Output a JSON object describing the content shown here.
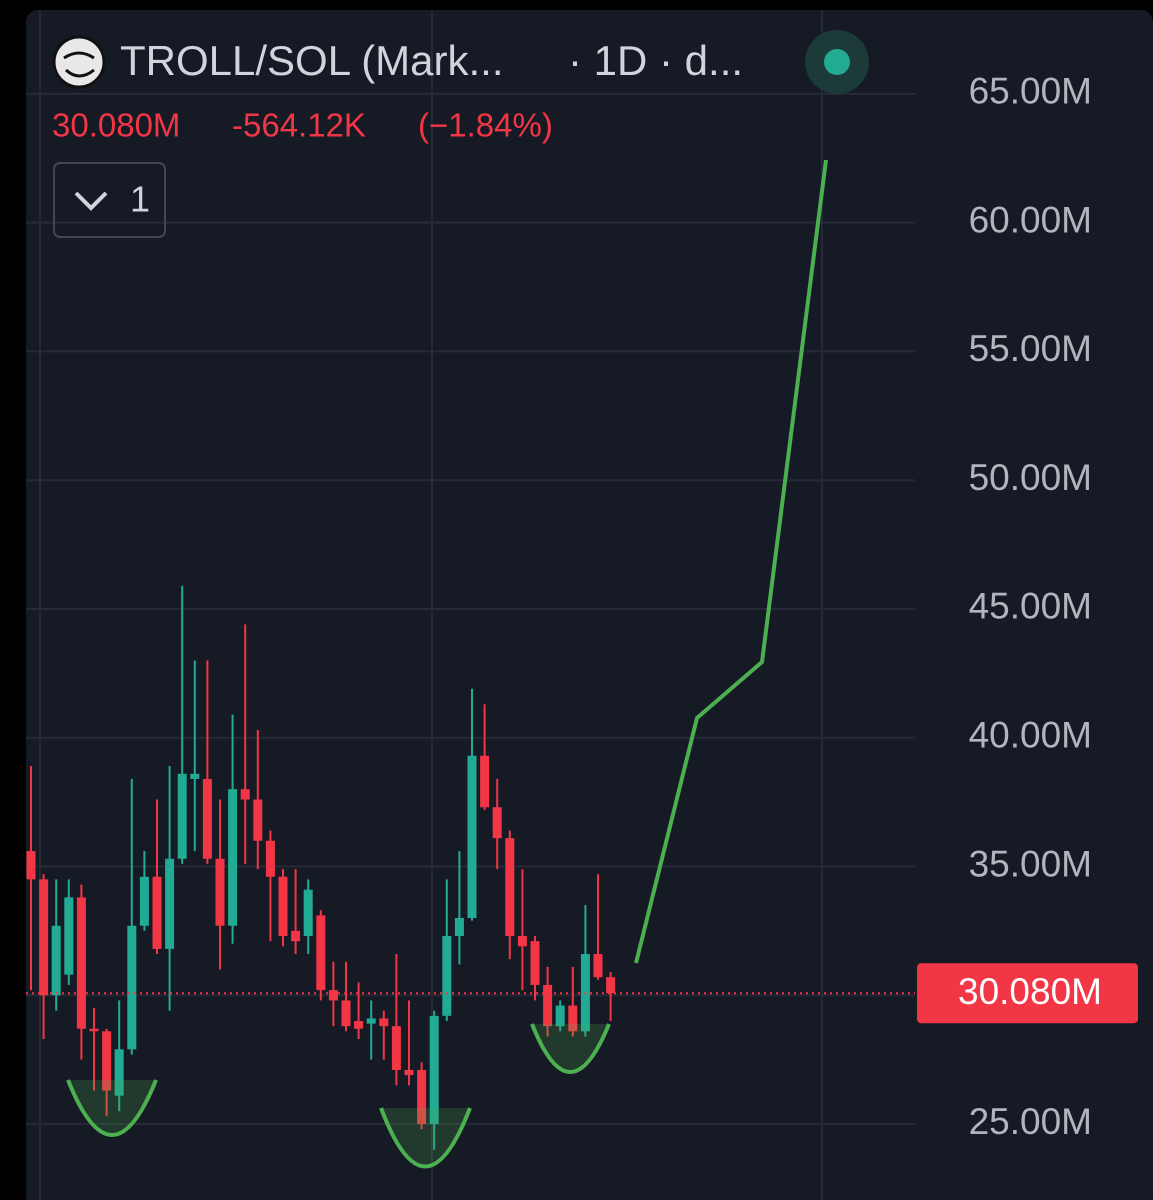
{
  "chart_data": {
    "type": "candlestick",
    "title": "TROLL/SOL (Mark...",
    "subtitle": "· 1D · d...",
    "ohlc_last": "30.080M",
    "change": "-564.12K",
    "change_pct": "(−1.84%)",
    "indicators_button": "1",
    "up_color": "#22ab94",
    "down_color": "#f23645",
    "grid": true,
    "open": [
      35.6,
      34.5,
      30.0,
      30.8,
      33.8,
      28.7,
      28.6,
      26.1,
      27.9,
      32.7,
      34.6,
      31.8,
      35.3,
      38.4,
      38.4,
      35.3,
      32.7,
      38.0,
      37.6,
      36.0,
      34.6,
      32.5,
      32.3,
      33.1,
      30.2,
      29.8,
      29.0,
      28.9,
      29.1,
      28.8,
      27.1,
      27.1,
      25.0,
      29.2,
      32.3,
      33.0,
      39.3,
      37.3,
      36.1,
      32.3,
      32.1,
      30.4,
      28.8,
      29.6,
      28.6,
      31.6,
      30.7
    ],
    "high": [
      38.9,
      34.7,
      34.5,
      34.5,
      34.3,
      29.5,
      28.7,
      29.8,
      38.4,
      35.6,
      37.6,
      38.9,
      45.9,
      43.0,
      43.0,
      37.6,
      40.9,
      44.4,
      40.3,
      36.4,
      34.9,
      34.9,
      34.5,
      33.3,
      31.3,
      31.3,
      30.5,
      29.8,
      29.4,
      31.6,
      29.8,
      27.4,
      29.4,
      34.5,
      35.6,
      41.9,
      41.3,
      38.4,
      36.4,
      34.9,
      32.3,
      31.1,
      29.8,
      31.1,
      33.5,
      34.7,
      30.9
    ],
    "low": [
      30.2,
      28.3,
      29.4,
      30.4,
      27.5,
      26.3,
      25.3,
      25.5,
      27.7,
      32.5,
      31.6,
      29.4,
      35.1,
      35.6,
      35.1,
      31.0,
      32.0,
      35.1,
      34.9,
      32.1,
      31.9,
      31.6,
      31.6,
      29.8,
      28.8,
      28.6,
      28.3,
      27.5,
      27.5,
      26.5,
      26.5,
      24.8,
      24.0,
      29.0,
      31.2,
      32.9,
      37.2,
      34.9,
      31.4,
      30.2,
      29.8,
      28.4,
      28.6,
      28.4,
      28.4,
      30.6,
      29.0
    ],
    "close": [
      34.5,
      30.0,
      32.7,
      33.8,
      28.7,
      28.6,
      26.3,
      27.9,
      32.7,
      34.6,
      31.8,
      35.3,
      38.6,
      38.6,
      35.3,
      32.7,
      38.0,
      37.6,
      36.0,
      34.6,
      32.3,
      32.1,
      34.1,
      30.2,
      29.8,
      28.8,
      28.7,
      29.1,
      28.8,
      27.1,
      26.9,
      25.0,
      29.2,
      32.3,
      33.0,
      39.3,
      37.3,
      36.1,
      32.3,
      31.9,
      30.4,
      28.8,
      29.6,
      28.6,
      31.6,
      30.7,
      30.08
    ],
    "ylim": [
      22.05,
      68.18
    ],
    "yticks": [
      {
        "value": 25,
        "label": "25.00M"
      },
      {
        "value": 30,
        "label": "30.00M"
      },
      {
        "value": 35,
        "label": "35.00M"
      },
      {
        "value": 40,
        "label": "40.00M"
      },
      {
        "value": 45,
        "label": "45.00M"
      },
      {
        "value": 50,
        "label": "50.00M"
      },
      {
        "value": 55,
        "label": "55.00M"
      },
      {
        "value": 60,
        "label": "60.00M"
      },
      {
        "value": 65,
        "label": "65.00M"
      }
    ],
    "last_price": {
      "value": 30.08,
      "label": "30.080M"
    }
  }
}
